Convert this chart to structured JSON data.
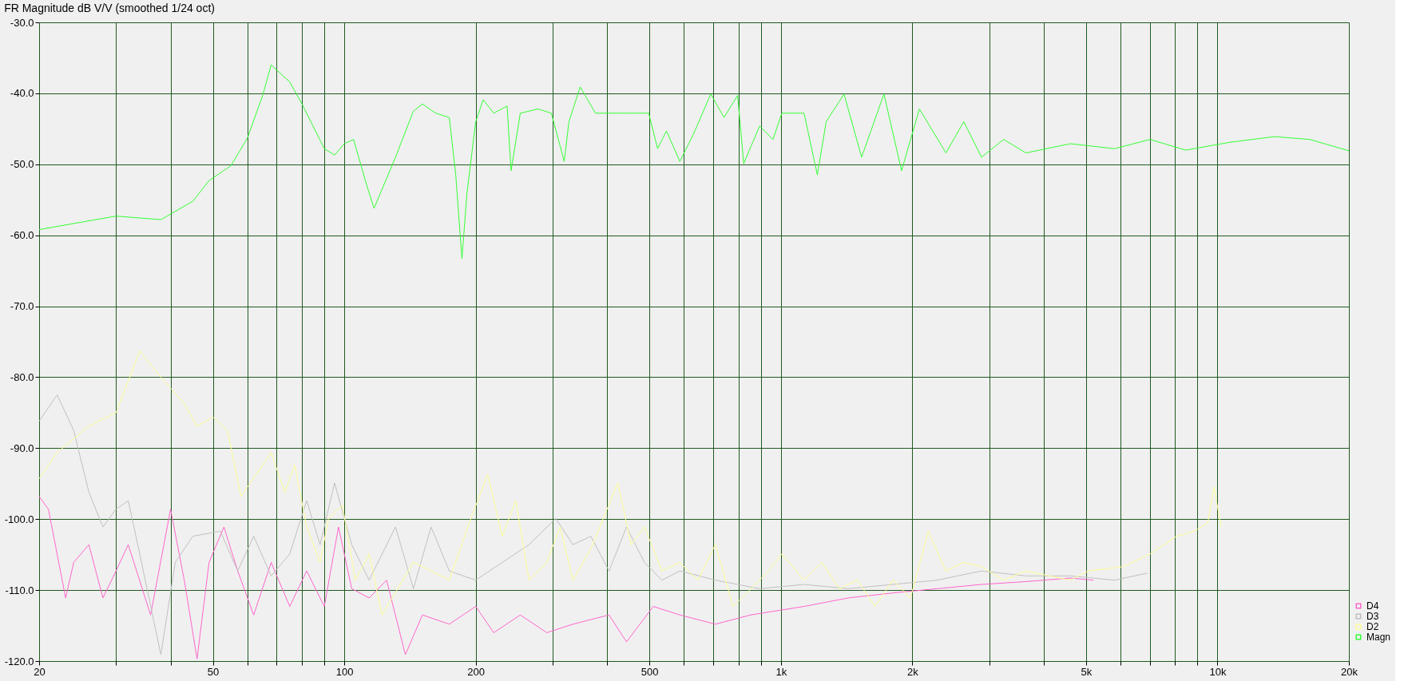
{
  "chart_data": {
    "type": "line",
    "title": "FR Magnitude dB V/V (smoothed 1/24 oct)",
    "log": "x",
    "grid": true,
    "legend": "bottom right",
    "line_style": "solid",
    "marker": "none",
    "xlim": [
      20,
      20000
    ],
    "ylim": [
      -120,
      -30
    ],
    "xticks": [
      20,
      {
        "value": 30,
        "label": null
      },
      {
        "value": 40,
        "label": null
      },
      50,
      {
        "value": 60,
        "label": null
      },
      {
        "value": 70,
        "label": null
      },
      {
        "value": 80,
        "label": null
      },
      {
        "value": 90,
        "label": null
      },
      100,
      200,
      {
        "value": 300,
        "label": null
      },
      {
        "value": 400,
        "label": null
      },
      500,
      {
        "value": 600,
        "label": null
      },
      {
        "value": 700,
        "label": null
      },
      {
        "value": 800,
        "label": null
      },
      {
        "value": 900,
        "label": null
      },
      {
        "value": 1000,
        "label": "1k"
      },
      {
        "value": 2000,
        "label": "2k"
      },
      {
        "value": 3000,
        "label": null
      },
      {
        "value": 4000,
        "label": null
      },
      {
        "value": 5000,
        "label": "5k"
      },
      {
        "value": 6000,
        "label": null
      },
      {
        "value": 7000,
        "label": null
      },
      {
        "value": 8000,
        "label": null
      },
      {
        "value": 9000,
        "label": null
      },
      {
        "value": 10000,
        "label": "10k"
      },
      {
        "value": 20000,
        "label": "20k"
      }
    ],
    "yticks": [
      {
        "value": -120,
        "label": "-120.0"
      },
      {
        "value": -110,
        "label": "-110.0"
      },
      {
        "value": -100,
        "label": "-100.0"
      },
      {
        "value": -90,
        "label": "-90.0"
      },
      {
        "value": -80,
        "label": "-80.0"
      },
      {
        "value": -70,
        "label": "-70.0"
      },
      {
        "value": -60,
        "label": "-60.0"
      },
      {
        "value": -50,
        "label": "-50.0"
      },
      {
        "value": -40,
        "label": "-40.0"
      },
      {
        "value": -30,
        "label": "-30.0"
      }
    ],
    "series": [
      {
        "name": "D4",
        "color": "#ff66cc",
        "x": [
          20,
          21,
          23,
          24,
          26,
          28,
          30,
          32,
          36,
          40,
          43,
          46,
          49,
          53,
          57,
          62,
          68,
          75,
          82,
          90,
          97,
          104,
          114,
          125,
          138,
          151,
          174,
          200,
          220,
          253,
          291,
          334,
          404,
          443,
          510,
          587,
          708,
          853,
          982,
          1130,
          1428,
          1805,
          2279,
          2881,
          3641,
          4602,
          5196
        ],
        "values": [
          -96.8,
          -98.6,
          -111.1,
          -106.1,
          -103.6,
          -111.1,
          -107.3,
          -103.6,
          -113.5,
          -98.6,
          -108.6,
          -119.7,
          -106.1,
          -101.1,
          -107.3,
          -113.5,
          -106.1,
          -112.3,
          -107.3,
          -112.3,
          -101.1,
          -109.8,
          -111.1,
          -108.6,
          -119.1,
          -113.5,
          -114.8,
          -112.3,
          -116.0,
          -113.5,
          -116.0,
          -114.8,
          -113.5,
          -117.3,
          -112.3,
          -113.5,
          -114.8,
          -113.5,
          -112.9,
          -112.3,
          -111.1,
          -110.4,
          -109.8,
          -109.2,
          -108.8,
          -108.3,
          -108.6
        ]
      },
      {
        "name": "D3",
        "color": "#c0c0c0",
        "x": [
          20,
          22,
          24,
          26,
          28,
          30,
          32,
          34,
          38,
          41,
          45,
          52,
          57,
          62,
          68,
          75,
          82,
          88,
          95,
          104,
          114,
          131,
          144,
          158,
          174,
          200,
          230,
          265,
          305,
          334,
          367,
          404,
          443,
          487,
          534,
          587,
          708,
          894,
          1130,
          1428,
          1805,
          2279,
          2881,
          3641,
          4602,
          5811,
          6912
        ],
        "values": [
          -86.2,
          -82.5,
          -87.5,
          -96.2,
          -101.1,
          -98.6,
          -97.4,
          -104.9,
          -119.1,
          -106.1,
          -102.4,
          -101.7,
          -107.3,
          -102.4,
          -108.0,
          -104.9,
          -97.4,
          -103.6,
          -94.9,
          -103.6,
          -108.6,
          -101.1,
          -109.8,
          -101.1,
          -107.3,
          -108.6,
          -106.1,
          -103.6,
          -99.9,
          -103.6,
          -102.4,
          -107.3,
          -101.1,
          -106.1,
          -108.6,
          -107.3,
          -108.6,
          -109.8,
          -109.2,
          -109.8,
          -109.2,
          -108.6,
          -107.3,
          -108.0,
          -108.0,
          -108.6,
          -107.6
        ]
      },
      {
        "name": "D2",
        "color": "#ffff99",
        "x": [
          20,
          22,
          26,
          30,
          34,
          38,
          43,
          46,
          50,
          54,
          58,
          65,
          68,
          73,
          77,
          82,
          88,
          92,
          99,
          106,
          114,
          122,
          144,
          158,
          174,
          195,
          213,
          230,
          247,
          265,
          291,
          312,
          334,
          367,
          423,
          454,
          487,
          534,
          587,
          645,
          708,
          777,
          874,
          937,
          1005,
          1130,
          1241,
          1362,
          1496,
          1642,
          1805,
          1981,
          2175,
          2388,
          2624,
          2881,
          3239,
          3641,
          4602,
          5053,
          6090,
          7010,
          8067,
          8858,
          9505,
          9821,
          10194
        ],
        "values": [
          -94.3,
          -90.6,
          -86.9,
          -85.0,
          -76.3,
          -80.0,
          -83.7,
          -86.9,
          -85.6,
          -87.5,
          -96.8,
          -92.4,
          -90.6,
          -96.2,
          -92.4,
          -101.1,
          -106.1,
          -99.9,
          -98.0,
          -108.6,
          -104.9,
          -113.5,
          -106.1,
          -107.3,
          -108.6,
          -99.9,
          -93.7,
          -102.4,
          -97.4,
          -108.6,
          -106.1,
          -101.1,
          -108.6,
          -104.2,
          -94.9,
          -103.6,
          -101.1,
          -107.3,
          -106.1,
          -108.6,
          -103.6,
          -112.3,
          -109.2,
          -107.3,
          -104.9,
          -108.6,
          -106.1,
          -109.8,
          -108.6,
          -112.3,
          -108.6,
          -111.1,
          -101.7,
          -107.3,
          -106.1,
          -106.7,
          -108.6,
          -107.3,
          -108.6,
          -107.3,
          -106.7,
          -104.9,
          -102.4,
          -101.7,
          -100.5,
          -95.5,
          -101.1
        ]
      },
      {
        "name": "Magn",
        "color": "#33ff33",
        "x": [
          20,
          30,
          38,
          45,
          49,
          55,
          60,
          65,
          68,
          75,
          80,
          90,
          95,
          100,
          105,
          113,
          117,
          131,
          144,
          151,
          162,
          174,
          180,
          186,
          191,
          200,
          208,
          220,
          236,
          241,
          253,
          278,
          298,
          319,
          327,
          347,
          376,
          443,
          498,
          522,
          547,
          587,
          629,
          691,
          741,
          796,
          822,
          894,
          959,
          1005,
          1130,
          1212,
          1270,
          1395,
          1531,
          1722,
          1890,
          2076,
          2388,
          2624,
          2881,
          3239,
          3641,
          4602,
          5811,
          7010,
          8454,
          10682,
          13501,
          16277,
          20000
        ],
        "values": [
          -59.2,
          -57.3,
          -57.8,
          -55.2,
          -52.3,
          -50.2,
          -46.3,
          -40.3,
          -36.0,
          -38.4,
          -41.5,
          -47.8,
          -48.7,
          -47.1,
          -46.5,
          -53.3,
          -56.2,
          -49.0,
          -42.5,
          -41.5,
          -42.8,
          -43.4,
          -51.5,
          -63.3,
          -54.0,
          -44.0,
          -40.9,
          -42.8,
          -41.8,
          -50.9,
          -42.8,
          -42.2,
          -42.8,
          -49.6,
          -44.0,
          -39.1,
          -42.8,
          -42.8,
          -42.8,
          -47.8,
          -45.3,
          -49.6,
          -45.9,
          -40.1,
          -43.4,
          -40.3,
          -49.9,
          -44.6,
          -46.5,
          -42.8,
          -42.8,
          -51.5,
          -44.0,
          -40.1,
          -49.0,
          -40.1,
          -50.9,
          -42.2,
          -48.4,
          -44.0,
          -49.0,
          -46.5,
          -48.4,
          -47.1,
          -47.8,
          -46.5,
          -48.0,
          -46.9,
          -46.1,
          -46.5,
          -48.1
        ]
      }
    ]
  }
}
